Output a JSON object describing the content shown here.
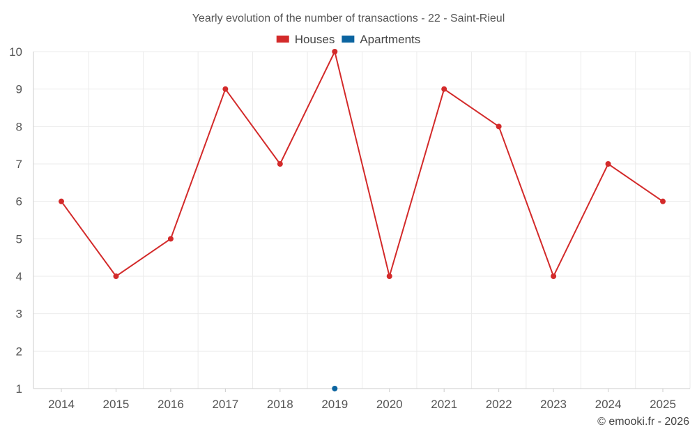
{
  "chart_data": {
    "type": "line",
    "title": "Yearly evolution of the number of transactions - 22 - Saint-Rieul",
    "x": [
      "2014",
      "2015",
      "2016",
      "2017",
      "2018",
      "2019",
      "2020",
      "2021",
      "2022",
      "2023",
      "2024",
      "2025"
    ],
    "ylim": [
      1,
      10
    ],
    "yticks": [
      1,
      2,
      3,
      4,
      5,
      6,
      7,
      8,
      9,
      10
    ],
    "grid": true,
    "legend_position": "top-center",
    "series": [
      {
        "name": "Houses",
        "color": "#d32a2a",
        "values": [
          6,
          4,
          5,
          9,
          7,
          10,
          4,
          9,
          8,
          4,
          7,
          6
        ]
      },
      {
        "name": "Apartments",
        "color": "#0b64a0",
        "values": [
          null,
          null,
          null,
          null,
          null,
          1,
          null,
          null,
          null,
          null,
          null,
          null
        ]
      }
    ]
  },
  "credit": "© emooki.fr - 2026"
}
